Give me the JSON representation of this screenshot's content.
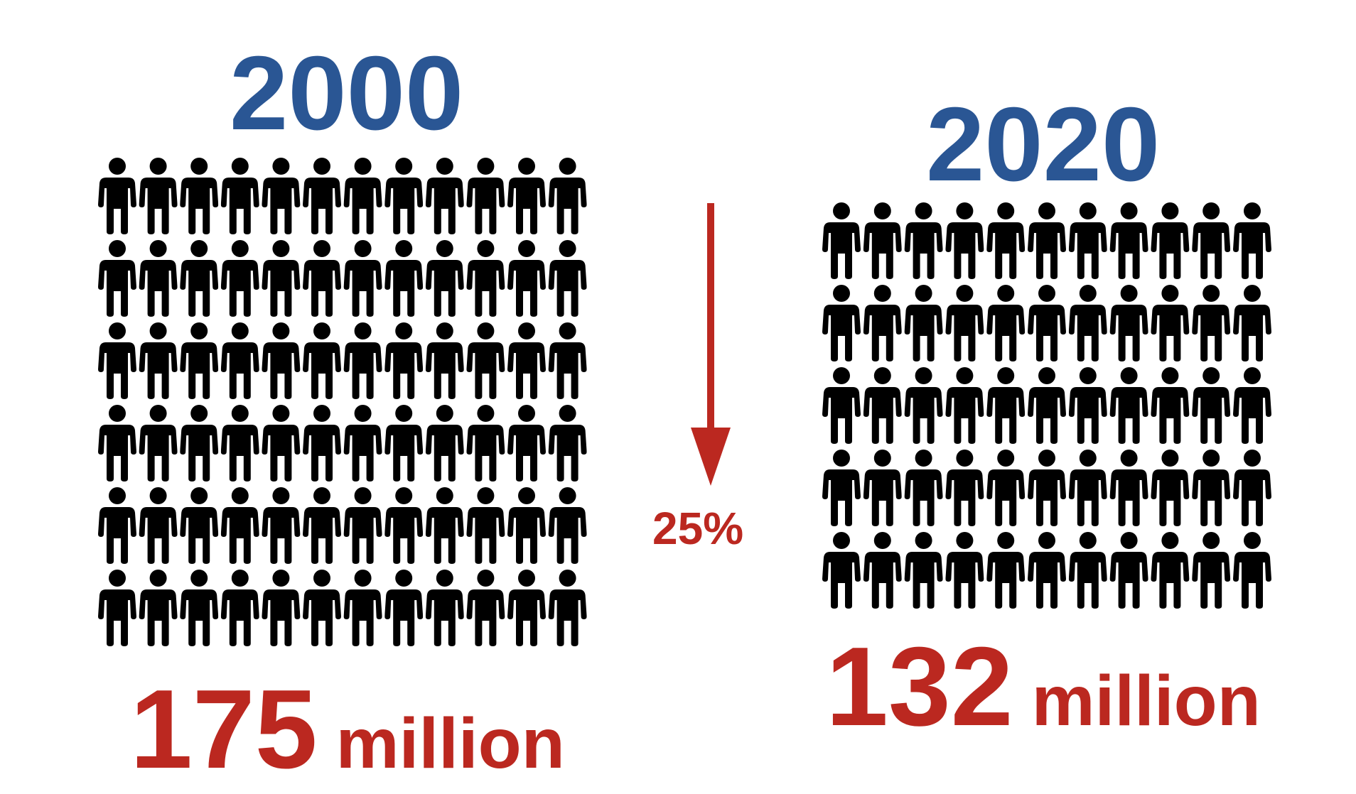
{
  "colors": {
    "year": "#2a5694",
    "total": "#bb2820",
    "arrow": "#bb2820",
    "person": "#000000"
  },
  "icon": "person-icon",
  "chart_data": {
    "type": "pictogram",
    "groups": [
      {
        "year": "2000",
        "value": "175",
        "unit": "million",
        "icon_rows": 6,
        "icon_columns": 12
      },
      {
        "year": "2020",
        "value": "132",
        "unit": "million",
        "icon_rows": 5,
        "icon_columns": 11
      }
    ],
    "change": {
      "label": "25%",
      "direction": "down"
    }
  }
}
